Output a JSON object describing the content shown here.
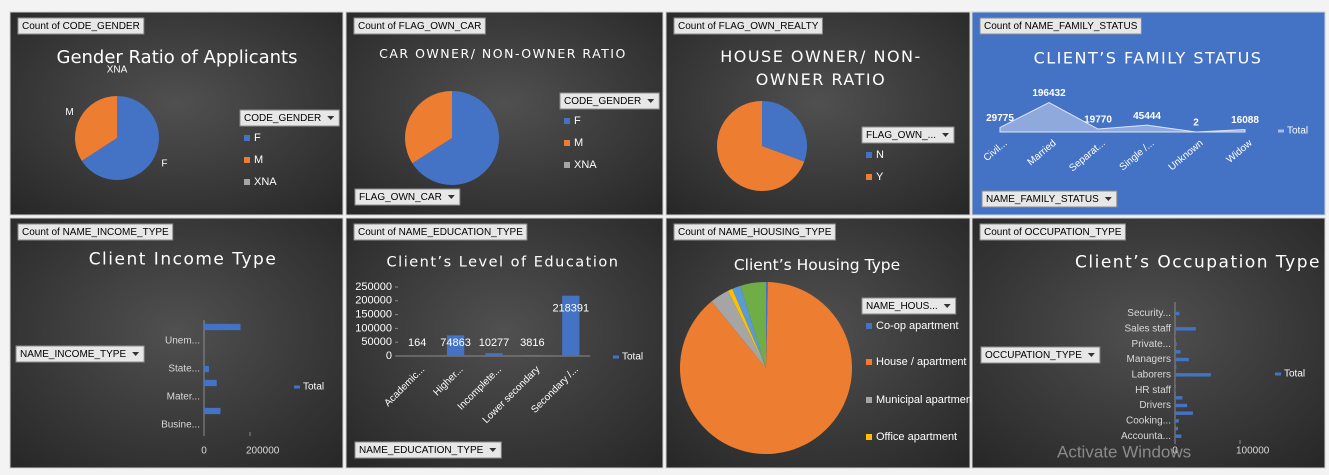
{
  "watermark": "Activate Windows",
  "chart_data": [
    {
      "type": "pie",
      "field_button": "Count of CODE_GENDER",
      "title": "Gender Ratio of Applicants",
      "legend_title": "CODE_GENDER",
      "categories": [
        "F",
        "M",
        "XNA"
      ],
      "values": [
        202448,
        105059,
        4
      ],
      "colors": [
        "#4472c4",
        "#ed7d31",
        "#a5a5a5"
      ],
      "slice_labels": true
    },
    {
      "type": "pie",
      "field_button": "Count of FLAG_OWN_CAR",
      "title": "CAR OWNER/ NON-OWNER RATIO",
      "legend_title": "CODE_GENDER",
      "filter_button": "FLAG_OWN_CAR",
      "categories": [
        "F",
        "M",
        "XNA"
      ],
      "values": [
        202924,
        104587,
        0
      ],
      "colors": [
        "#4472c4",
        "#ed7d31",
        "#a5a5a5"
      ]
    },
    {
      "type": "pie",
      "field_button": "Count of FLAG_OWN_REALTY",
      "title": "HOUSE OWNER/ NON-OWNER RATIO",
      "legend_title": "FLAG_OWN_...",
      "categories": [
        "N",
        "Y"
      ],
      "values": [
        94199,
        213312
      ],
      "colors": [
        "#4472c4",
        "#ed7d31"
      ]
    },
    {
      "type": "area",
      "field_button": "Count of NAME_FAMILY_STATUS",
      "title": "CLIENT’S FAMILY STATUS",
      "filter_button": "NAME_FAMILY_STATUS",
      "categories": [
        "Civil...",
        "Married",
        "Separat...",
        "Single /...",
        "Unknown",
        "Widow"
      ],
      "series": [
        {
          "name": "Total",
          "color": "#a9bce6",
          "values": [
            29775,
            196432,
            19770,
            45444,
            2,
            16088
          ]
        }
      ],
      "ylim": [
        0,
        200000
      ]
    },
    {
      "type": "barh",
      "field_button": "Count of NAME_INCOME_TYPE",
      "title": "Client Income Type",
      "filter_button": "NAME_INCOME_TYPE",
      "categories": [
        "Busine...",
        null,
        "Mater...",
        null,
        "State...",
        null,
        "Unem...",
        null
      ],
      "series": [
        {
          "name": "Total",
          "color": "#4472c4",
          "values": [
            10,
            71617,
            5,
            55362,
            21703,
            18,
            22,
            158774
          ]
        }
      ],
      "xlim": [
        0,
        200000
      ],
      "xticks": [
        0,
        200000
      ]
    },
    {
      "type": "bar",
      "field_button": "Count of NAME_EDUCATION_TYPE",
      "title": "Client’s Level of Education",
      "filter_button": "NAME_EDUCATION_TYPE",
      "categories": [
        "Academic...",
        "Higher...",
        "Incomplete...",
        "Lower secondary",
        "Secondary /..."
      ],
      "series": [
        {
          "name": "Total",
          "color": "#4472c4",
          "values": [
            164,
            74863,
            10277,
            3816,
            218391
          ]
        }
      ],
      "ylim": [
        0,
        250000
      ],
      "yticks": [
        0,
        50000,
        100000,
        150000,
        200000,
        250000
      ]
    },
    {
      "type": "pie",
      "field_button": "Count of NAME_HOUSING_TYPE",
      "title": "Client’s Housing Type",
      "legend_title": "NAME_HOUS...",
      "categories": [
        "Co-op apartment",
        "House / apartment",
        "Municipal apartment",
        "Office apartment",
        null,
        null
      ],
      "values": [
        1122,
        272868,
        11183,
        2617,
        4881,
        14840
      ],
      "colors": [
        "#4472c4",
        "#ed7d31",
        "#a5a5a5",
        "#ffc000",
        "#5b9bd5",
        "#70ad47"
      ]
    },
    {
      "type": "barh",
      "field_button": "Count of OCCUPATION_TYPE",
      "title": "Client’s Occupation Type",
      "filter_button": "OCCUPATION_TYPE",
      "categories": [
        "Accounta...",
        null,
        "Cooking...",
        null,
        "Drivers",
        null,
        "HR staff",
        null,
        "Laborers",
        null,
        "Managers",
        null,
        "Private...",
        null,
        "Sales staff",
        null,
        "Security...",
        null
      ],
      "series": [
        {
          "name": "Total",
          "color": "#4472c4",
          "values": [
            9813,
            4653,
            5946,
            27570,
            18603,
            11380,
            563,
            526,
            55186,
            2093,
            21371,
            8537,
            2652,
            751,
            32102,
            1305,
            6721,
            1348
          ]
        }
      ],
      "xlim": [
        0,
        100000
      ],
      "xticks": [
        0,
        100000
      ]
    }
  ]
}
